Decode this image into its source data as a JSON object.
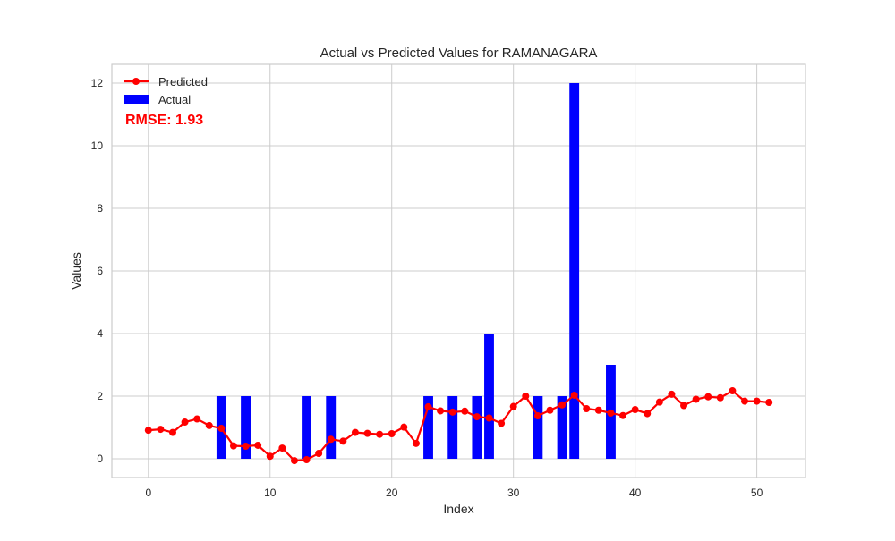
{
  "colors": {
    "actual": "#0000ff",
    "predicted": "#ff0000",
    "grid": "#cccccc",
    "frame": "#cccccc",
    "annotation": "#ff0000"
  },
  "annotation": {
    "rmse": "RMSE: 1.93"
  },
  "chart_data": {
    "type": "bar",
    "title": "Actual vs Predicted Values for RAMANAGARA",
    "xlabel": "Index",
    "ylabel": "Values",
    "xlim": [
      -3,
      54
    ],
    "ylim": [
      -0.6,
      12.6
    ],
    "xticks": [
      0,
      10,
      20,
      30,
      40,
      50
    ],
    "yticks": [
      0,
      2,
      4,
      6,
      8,
      10,
      12
    ],
    "grid": true,
    "legend_position": "top-left",
    "x": [
      0,
      1,
      2,
      3,
      4,
      5,
      6,
      7,
      8,
      9,
      10,
      11,
      12,
      13,
      14,
      15,
      16,
      17,
      18,
      19,
      20,
      21,
      22,
      23,
      24,
      25,
      26,
      27,
      28,
      29,
      30,
      31,
      32,
      33,
      34,
      35,
      36,
      37,
      38,
      39,
      40,
      41,
      42,
      43,
      44,
      45,
      46,
      47,
      48,
      49,
      50,
      51
    ],
    "series": [
      {
        "name": "Predicted",
        "kind": "line",
        "marker": "circle",
        "color": "#ff0000",
        "values": [
          0.91,
          0.94,
          0.84,
          1.17,
          1.27,
          1.06,
          0.97,
          0.41,
          0.4,
          0.43,
          0.08,
          0.34,
          -0.06,
          -0.03,
          0.17,
          0.62,
          0.56,
          0.84,
          0.81,
          0.78,
          0.8,
          1.01,
          0.49,
          1.66,
          1.53,
          1.49,
          1.52,
          1.34,
          1.3,
          1.13,
          1.67,
          2.0,
          1.37,
          1.55,
          1.72,
          2.03,
          1.6,
          1.55,
          1.46,
          1.38,
          1.57,
          1.44,
          1.81,
          2.06,
          1.7,
          1.9,
          1.98,
          1.95,
          2.17,
          1.84,
          1.84,
          1.8
        ]
      },
      {
        "name": "Actual",
        "kind": "bar",
        "color": "#0000ff",
        "values": [
          0,
          0,
          0,
          0,
          0,
          0,
          2,
          0,
          2,
          0,
          0,
          0,
          0,
          2,
          0,
          2,
          0,
          0,
          0,
          0,
          0,
          0,
          0,
          2,
          0,
          2,
          0,
          2,
          4,
          0,
          0,
          0,
          2,
          0,
          2,
          12,
          0,
          0,
          3,
          0,
          0,
          0,
          0,
          0,
          0,
          0,
          0,
          0,
          0,
          0,
          0,
          0
        ]
      }
    ]
  }
}
